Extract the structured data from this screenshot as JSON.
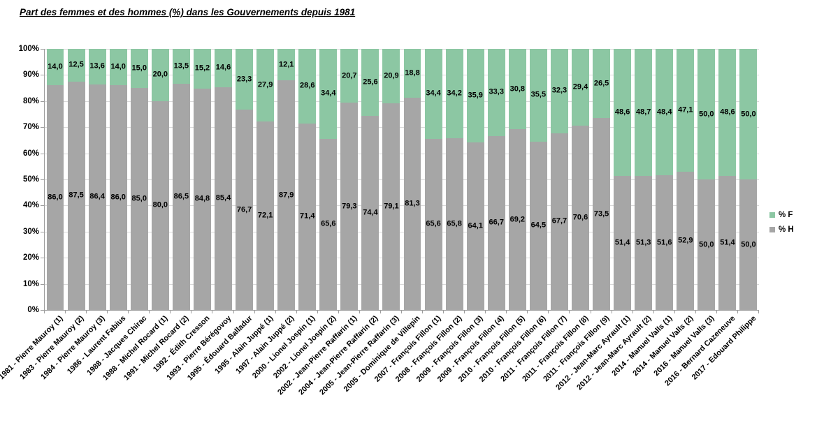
{
  "title": "Part des femmes et des hommes (%) dans les Gouvernements depuis 1981",
  "legend": {
    "f_label": "% F",
    "h_label": "% H"
  },
  "colors": {
    "f_series": "#8cc7a3",
    "h_series": "#a6a6a6",
    "gridline": "#d9d9d9",
    "axis": "#9c9c9c",
    "text": "#000000",
    "background": "#ffffff"
  },
  "y_axis": {
    "ticks": [
      "100%",
      "90%",
      "80%",
      "70%",
      "60%",
      "50%",
      "40%",
      "30%",
      "20%",
      "10%",
      "0%"
    ],
    "min": 0,
    "max": 100
  },
  "chart_data": {
    "type": "bar",
    "stacked": true,
    "title": "Part des femmes et des hommes (%) dans les Gouvernements depuis 1981",
    "xlabel": "",
    "ylabel": "",
    "ylim": [
      0,
      100
    ],
    "y_tick_step": 10,
    "y_tick_format": "percent",
    "grid": true,
    "legend_position": "right",
    "decimal_separator": ",",
    "categories": [
      "1981 - Pierre Mauroy (1)",
      "1983 - Pierre Mauroy (2)",
      "1984 - Pierre Mauroy (3)",
      "1986 - Laurent Fabius",
      "1988 - Jacques Chirac",
      "1988 - Michel Rocard (1)",
      "1991 - Michel Rocard (2)",
      "1992 - Édith Cresson",
      "1993 - Pierre Bérégovoy",
      "1995 - Édouard Balladur",
      "1995 - Alain Juppé (1)",
      "1997 - Alain Juppé (2)",
      "2000 - Lionel Jospin (1)",
      "2002 - Lionel Jospin (2)",
      "2002 - Jean-Pierre Raffarin (1)",
      "2004 - Jean-Pierre Raffarin (2)",
      "2005 - Jean-Pierre Raffarin (3)",
      "2005 - Dominique de Villepin",
      "2007 - François Fillon (1)",
      "2008 - François Fillon (2)",
      "2009 - François Fillon (3)",
      "2009 - François Fillon (4)",
      "2010 - François Fillon (5)",
      "2010 - François Fillon (6)",
      "2011 - François Fillon (7)",
      "2011 - François Fillon (8)",
      "2011 - François Fillon (9)",
      "2012 - Jean-Marc Ayrault (1)",
      "2012 - Jean-Marc Ayrault (2)",
      "2014 - Manuel Valls (1)",
      "2014 - Manuel Valls (2)",
      "2016 - Manuel Valls (3)",
      "2016 - Bernard Cazeneuve",
      "2017 - Edouard Philippe"
    ],
    "series": [
      {
        "name": "% F",
        "color": "#8cc7a3",
        "values": [
          14.0,
          12.5,
          13.6,
          14.0,
          15.0,
          20.0,
          13.5,
          15.2,
          14.6,
          23.3,
          27.9,
          12.1,
          28.6,
          34.4,
          20.7,
          25.6,
          20.9,
          18.8,
          34.4,
          34.2,
          35.9,
          33.3,
          30.8,
          35.5,
          32.3,
          29.4,
          26.5,
          48.6,
          48.7,
          48.4,
          47.1,
          50.0,
          48.6,
          50.0
        ]
      },
      {
        "name": "% H",
        "color": "#a6a6a6",
        "values": [
          86.0,
          87.5,
          86.4,
          86.0,
          85.0,
          80.0,
          86.5,
          84.8,
          85.4,
          76.7,
          72.1,
          87.9,
          71.4,
          65.6,
          79.3,
          74.4,
          79.1,
          81.3,
          65.6,
          65.8,
          64.1,
          66.7,
          69.2,
          64.5,
          67.7,
          70.6,
          73.5,
          51.4,
          51.3,
          51.6,
          52.9,
          50.0,
          51.4,
          50.0
        ]
      }
    ]
  }
}
